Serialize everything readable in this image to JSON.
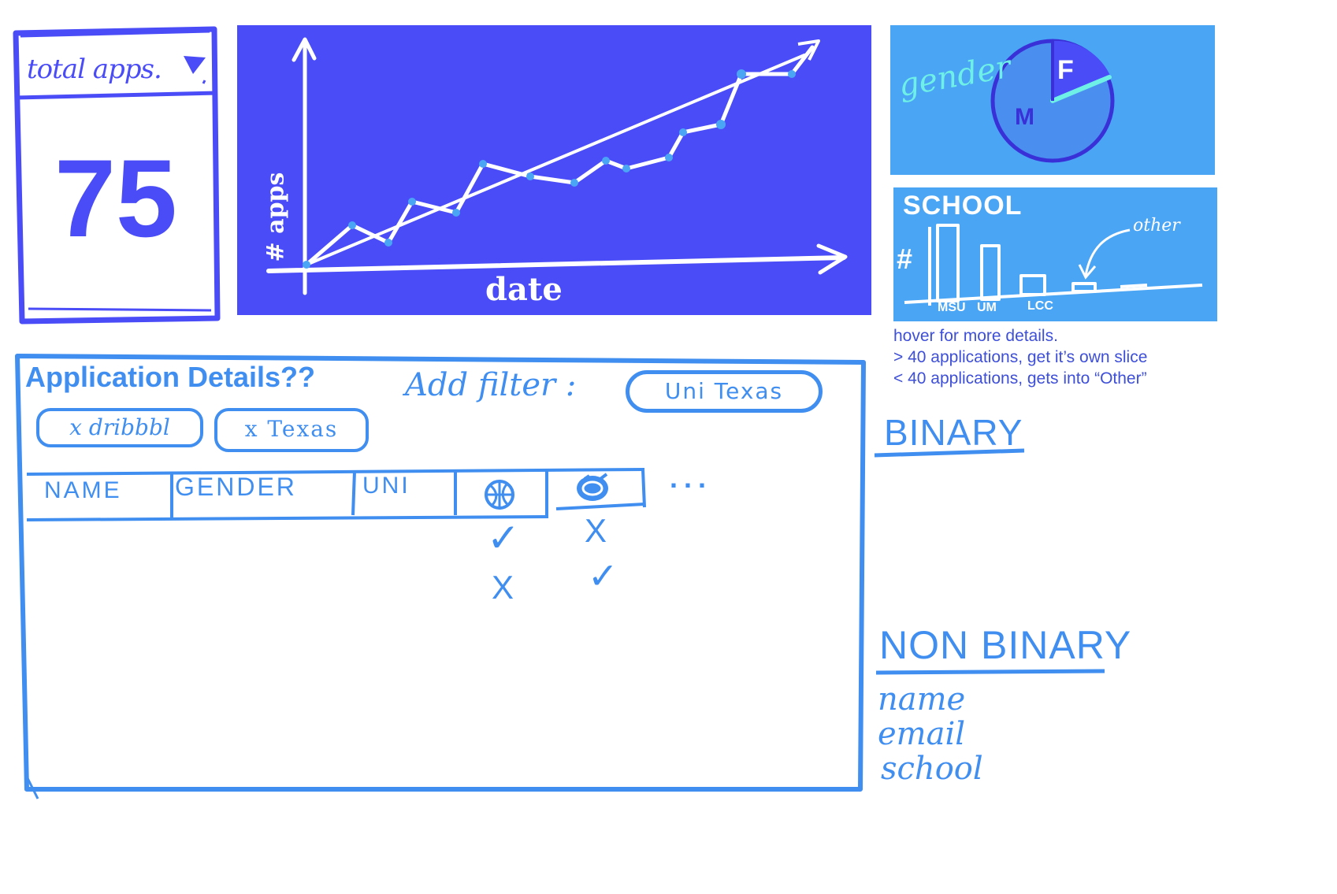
{
  "total_card": {
    "label": "total apps.",
    "value": "75"
  },
  "line_chart_card": {
    "ylabel": "# apps",
    "xlabel": "date"
  },
  "gender_card": {
    "label": "gender",
    "slice_f": "F",
    "slice_m": "M"
  },
  "school_card": {
    "label": "SCHOOL",
    "axis_label": "#",
    "bars": [
      "MSU",
      "UM",
      "LCC"
    ],
    "annotation": "other"
  },
  "notes": [
    "hover for more details.",
    "> 40 applications, get it’s own slice",
    "< 40 applications, gets into “Other”"
  ],
  "details": {
    "title": "Application Details??",
    "add_filter_label": "Add filter :",
    "filter_value": "Uni Texas",
    "active_filters": [
      "x dribbbl",
      "x Texas"
    ],
    "columns": [
      "NAME",
      "GENDER",
      "UNI",
      "basketball-icon",
      "dribbble-icon"
    ],
    "more": "...",
    "marks": [
      [
        "✓",
        "X"
      ],
      [
        "X",
        "✓"
      ]
    ]
  },
  "binary": {
    "heading": "BINARY"
  },
  "nonbinary": {
    "heading": "NON BINARY",
    "fields": [
      "name",
      "email",
      "school"
    ]
  },
  "colors": {
    "dark_blue": "#4a4cf7",
    "light_blue": "#4aa5f5",
    "sketch_blue": "#3f8ef0"
  }
}
